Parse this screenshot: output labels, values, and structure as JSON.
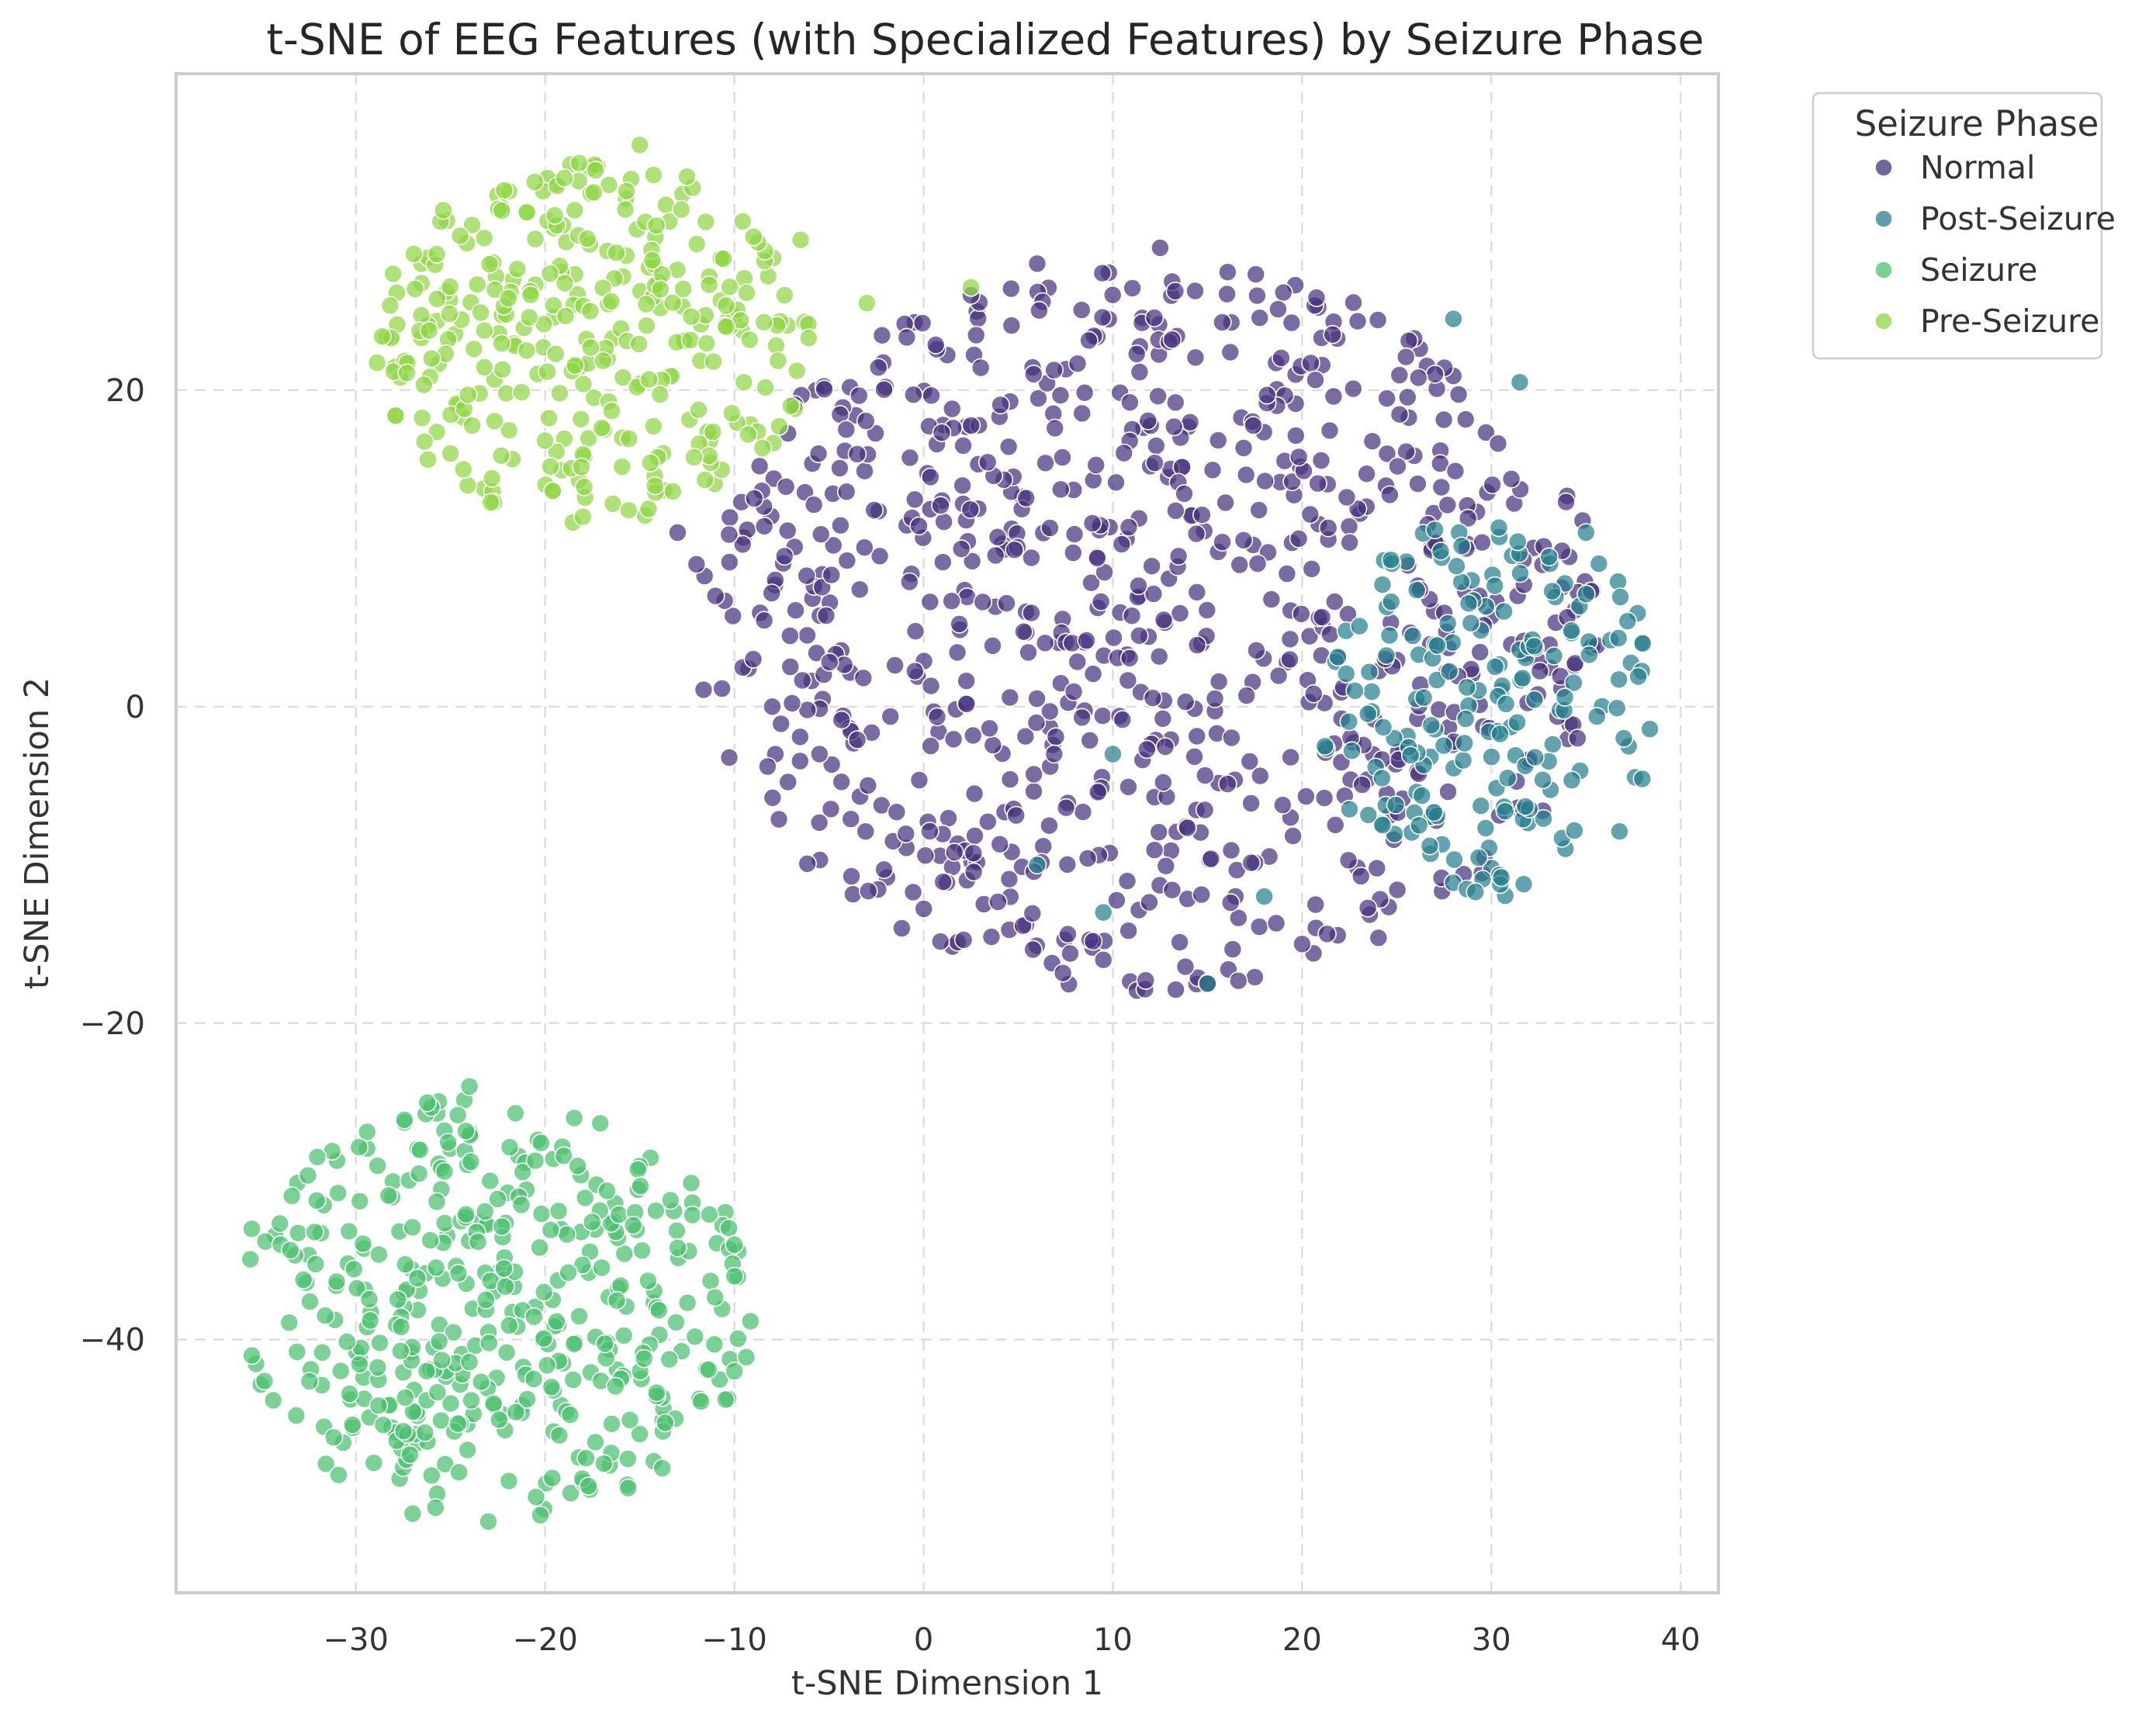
{
  "chart_data": {
    "type": "scatter",
    "title": "t-SNE of EEG Features (with Specialized Features) by Seizure Phase",
    "xlabel": "t-SNE Dimension 1",
    "ylabel": "t-SNE Dimension 2",
    "xlim": [
      -39.5,
      42
    ],
    "ylim": [
      -56,
      40
    ],
    "xticks": [
      -30,
      -20,
      -10,
      0,
      10,
      20,
      30,
      40
    ],
    "xtick_labels": [
      "−30",
      "−20",
      "−10",
      "0",
      "10",
      "20",
      "30",
      "40"
    ],
    "yticks": [
      -40,
      -20,
      0,
      20
    ],
    "ytick_labels": [
      "−40",
      "−20",
      "0",
      "20"
    ],
    "grid": true,
    "legend": {
      "title": "Seizure Phase",
      "placement": "outside-upper-right"
    },
    "series": [
      {
        "name": "Normal",
        "color": "#46327e",
        "clusters": [
          {
            "center": [
              12,
              5
            ],
            "radius": [
              24,
              23
            ],
            "count": 840
          }
        ],
        "points": [
          [
            -13,
            11
          ],
          [
            -11,
            7
          ],
          [
            -12,
            9
          ],
          [
            -9,
            3
          ],
          [
            -8,
            0
          ],
          [
            -5.5,
            -3
          ],
          [
            15,
            -17.5
          ],
          [
            20,
            -15
          ],
          [
            9.5,
            -16
          ],
          [
            12.5,
            29
          ],
          [
            6,
            28
          ],
          [
            2.5,
            26
          ]
        ]
      },
      {
        "name": "Post-Seizure",
        "color": "#277f8e",
        "clusters": [
          {
            "center": [
              30,
              0
            ],
            "radius": [
              9,
              12
            ],
            "count": 190
          }
        ],
        "points": [
          [
            28,
            24.5
          ],
          [
            31.5,
            20.5
          ],
          [
            15,
            -17.5
          ],
          [
            18,
            -12
          ],
          [
            9.5,
            -13
          ],
          [
            6,
            -10
          ],
          [
            10,
            -3
          ],
          [
            35,
            11
          ],
          [
            38,
            4
          ],
          [
            37,
            -2
          ]
        ]
      },
      {
        "name": "Seizure",
        "color": "#4ac16d",
        "clusters": [
          {
            "center": [
              -22.5,
              -38
            ],
            "radius": [
              13.5,
              13.5
            ],
            "count": 420
          }
        ],
        "points": [
          [
            -23,
            -51.5
          ],
          [
            -24,
            -24
          ],
          [
            -35.5,
            -33
          ],
          [
            -35.5,
            -41
          ],
          [
            -10,
            -34
          ],
          [
            -10,
            -36
          ],
          [
            -10,
            -42
          ],
          [
            -27,
            -51
          ]
        ]
      },
      {
        "name": "Pre-Seizure",
        "color": "#8fd744",
        "clusters": [
          {
            "center": [
              -17.5,
              23
            ],
            "radius": [
              11.5,
              11.5
            ],
            "count": 330
          }
        ],
        "points": [
          [
            -15,
            35.5
          ],
          [
            -12.5,
            33.5
          ],
          [
            -26,
            22
          ],
          [
            -25,
            16
          ],
          [
            -3,
            25.5
          ],
          [
            -6.5,
            29.5
          ],
          [
            -18,
            12
          ],
          [
            -9.5,
            20.5
          ],
          [
            2.5,
            26.5
          ]
        ]
      }
    ]
  }
}
